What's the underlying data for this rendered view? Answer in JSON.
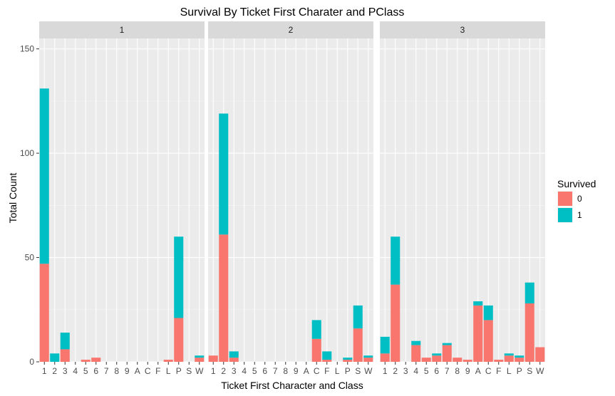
{
  "chart_data": {
    "type": "bar",
    "stacked": true,
    "title": "Survival By Ticket First Charater and PClass",
    "xlabel": "Ticket First Character and Class",
    "ylabel": "Total Count",
    "ylim": [
      0,
      155
    ],
    "yticks": [
      0,
      50,
      100,
      150
    ],
    "categories": [
      "1",
      "2",
      "3",
      "4",
      "5",
      "6",
      "7",
      "8",
      "9",
      "A",
      "C",
      "F",
      "L",
      "P",
      "S",
      "W"
    ],
    "legend": {
      "title": "Survived",
      "placement": "right",
      "entries": [
        {
          "label": "0",
          "color": "#F8766D"
        },
        {
          "label": "1",
          "color": "#00BFC4"
        }
      ]
    },
    "panels": [
      {
        "label": "1",
        "series": [
          {
            "name": "0",
            "values": [
              47,
              0,
              6,
              0,
              1,
              2,
              0,
              0,
              0,
              0,
              0,
              0,
              1,
              21,
              0,
              2
            ]
          },
          {
            "name": "1",
            "values": [
              84,
              4,
              8,
              0,
              0,
              0,
              0,
              0,
              0,
              0,
              0,
              0,
              0,
              39,
              0,
              1
            ]
          }
        ]
      },
      {
        "label": "2",
        "series": [
          {
            "name": "0",
            "values": [
              3,
              61,
              2,
              0,
              0,
              0,
              0,
              0,
              0,
              0,
              11,
              1,
              0,
              1,
              16,
              2
            ]
          },
          {
            "name": "1",
            "values": [
              0,
              58,
              3,
              0,
              0,
              0,
              0,
              0,
              0,
              0,
              9,
              4,
              0,
              1,
              11,
              1
            ]
          }
        ]
      },
      {
        "label": "3",
        "series": [
          {
            "name": "0",
            "values": [
              4,
              37,
              0,
              8,
              2,
              3,
              8,
              2,
              1,
              27,
              20,
              1,
              3,
              2,
              28,
              7
            ]
          },
          {
            "name": "1",
            "values": [
              8,
              23,
              0,
              2,
              0,
              1,
              1,
              0,
              0,
              2,
              7,
              0,
              1,
              1,
              10,
              0
            ]
          }
        ]
      }
    ]
  }
}
